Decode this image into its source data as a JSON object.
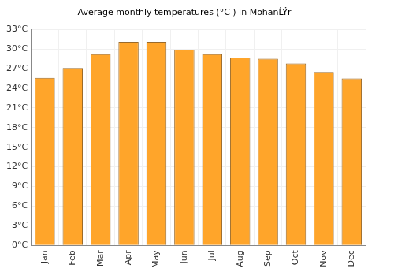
{
  "chart_data": {
    "type": "bar",
    "title": "Average monthly temperatures (°C ) in MohanĹŸr",
    "categories": [
      "Jan",
      "Feb",
      "Mar",
      "Apr",
      "May",
      "Jun",
      "Jul",
      "Aug",
      "Sep",
      "Oct",
      "Nov",
      "Dec"
    ],
    "values": [
      25.6,
      27.1,
      29.2,
      31.1,
      31.1,
      29.9,
      29.2,
      28.7,
      28.5,
      27.8,
      26.5,
      25.5
    ],
    "color": "#ffa52a",
    "ylim": [
      0,
      33
    ],
    "yticks": [
      {
        "value": 0,
        "label": "0°C"
      },
      {
        "value": 3,
        "label": "3°C"
      },
      {
        "value": 6,
        "label": "6°C"
      },
      {
        "value": 9,
        "label": "9°C"
      },
      {
        "value": 12,
        "label": "12°C"
      },
      {
        "value": 15,
        "label": "15°C"
      },
      {
        "value": 18,
        "label": "18°C"
      },
      {
        "value": 21,
        "label": "21°C"
      },
      {
        "value": 24,
        "label": "24°C"
      },
      {
        "value": 27,
        "label": "27°C"
      },
      {
        "value": 30,
        "label": "30°C"
      },
      {
        "value": 33,
        "label": "33°C"
      }
    ],
    "grid": true
  }
}
